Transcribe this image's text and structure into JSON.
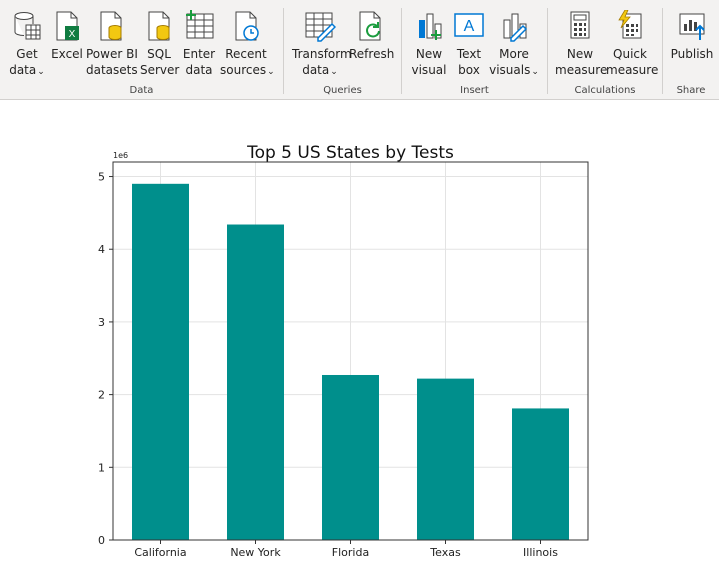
{
  "ribbon": {
    "buttons": [
      {
        "id": "get-data",
        "label1": "Get",
        "label2": "data",
        "chev": true,
        "icon": "database-icon"
      },
      {
        "id": "excel",
        "label1": "Excel",
        "label2": "",
        "chev": false,
        "icon": "excel-icon"
      },
      {
        "id": "powerbi-datasets",
        "label1": "Power BI",
        "label2": "datasets",
        "chev": false,
        "icon": "dataset-icon"
      },
      {
        "id": "sql-server",
        "label1": "SQL",
        "label2": "Server",
        "chev": false,
        "icon": "sql-icon"
      },
      {
        "id": "enter-data",
        "label1": "Enter",
        "label2": "data",
        "chev": false,
        "icon": "table-icon"
      },
      {
        "id": "recent-sources",
        "label1": "Recent",
        "label2": "sources",
        "chev": true,
        "icon": "clock-icon"
      },
      {
        "id": "transform-data",
        "label1": "Transform",
        "label2": "data",
        "chev": true,
        "icon": "transform-icon"
      },
      {
        "id": "refresh",
        "label1": "Refresh",
        "label2": "",
        "chev": false,
        "icon": "refresh-icon"
      },
      {
        "id": "new-visual",
        "label1": "New",
        "label2": "visual",
        "chev": false,
        "icon": "visual-icon"
      },
      {
        "id": "text-box",
        "label1": "Text",
        "label2": "box",
        "chev": false,
        "icon": "textbox-icon"
      },
      {
        "id": "more-visuals",
        "label1": "More",
        "label2": "visuals",
        "chev": true,
        "icon": "more-visuals-icon"
      },
      {
        "id": "new-measure",
        "label1": "New",
        "label2": "measure",
        "chev": false,
        "icon": "calculator-icon"
      },
      {
        "id": "quick-measure",
        "label1": "Quick",
        "label2": "measure",
        "chev": false,
        "icon": "quick-measure-icon"
      },
      {
        "id": "publish",
        "label1": "Publish",
        "label2": "",
        "chev": false,
        "icon": "publish-icon"
      }
    ],
    "groups": {
      "data": "Data",
      "queries": "Queries",
      "insert": "Insert",
      "calculations": "Calculations",
      "share": "Share"
    },
    "chevron": "⌄"
  },
  "chart_data": {
    "type": "bar",
    "title": "Top 5 US States by Tests",
    "categories": [
      "California",
      "New York",
      "Florida",
      "Texas",
      "Illinois"
    ],
    "values": [
      4900000,
      4340000,
      2270000,
      2220000,
      1810000
    ],
    "ylim": [
      0,
      5200000
    ],
    "yticks": [
      "0",
      "1",
      "2",
      "3",
      "4",
      "5"
    ],
    "ytick_values": [
      0,
      1000000,
      2000000,
      3000000,
      4000000,
      5000000
    ],
    "scale_label": "1e6",
    "bar_color": "#008f8c",
    "grid": true
  }
}
